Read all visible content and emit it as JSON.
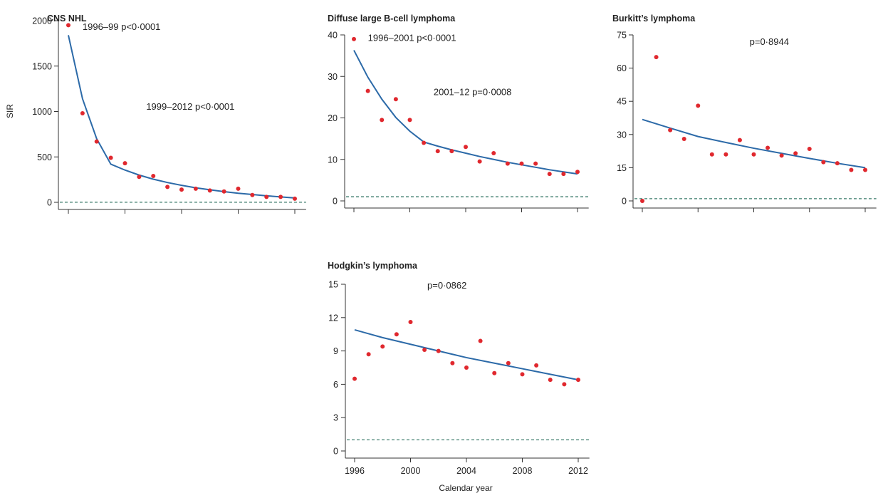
{
  "colors": {
    "points": "#e0282e",
    "fit_line": "#2c6aa8",
    "reference_line": "#3a7a6a",
    "axis": "#333333",
    "text": "#222222"
  },
  "chart_data": [
    {
      "id": "cns",
      "type": "scatter",
      "title": "CNS NHL",
      "ylabel": "SIR",
      "xlabel": "",
      "ylim": [
        0,
        2000
      ],
      "yticks": [
        0,
        500,
        1000,
        1500,
        2000
      ],
      "xlim": [
        1995.8,
        2012.8
      ],
      "xticks": [
        1996,
        2000,
        2004,
        2008,
        2012
      ],
      "show_xtick_labels": false,
      "reference_y": 1,
      "points": {
        "x": [
          1996,
          1997,
          1998,
          1999,
          2000,
          2001,
          2002,
          2003,
          2004,
          2005,
          2006,
          2007,
          2008,
          2009,
          2010,
          2011,
          2012
        ],
        "y": [
          1950,
          980,
          670,
          490,
          430,
          280,
          290,
          170,
          140,
          150,
          130,
          120,
          150,
          80,
          60,
          60,
          40
        ]
      },
      "fit": {
        "x": [
          1996,
          1997,
          1998,
          1999,
          2000,
          2001,
          2002,
          2003,
          2004,
          2005,
          2006,
          2007,
          2008,
          2009,
          2010,
          2011,
          2012
        ],
        "y": [
          1840,
          1140,
          700,
          420,
          355,
          300,
          255,
          218,
          187,
          160,
          138,
          118,
          100,
          86,
          72,
          60,
          48
        ]
      },
      "annotations": [
        {
          "text": "1996–99 p<0·0001",
          "x": 1997,
          "y": 1900
        },
        {
          "text": "1999–2012 p<0·0001",
          "x": 2001.5,
          "y": 1020
        }
      ]
    },
    {
      "id": "dlbcl",
      "type": "scatter",
      "title": "Diffuse large B-cell lymphoma",
      "ylabel": "",
      "xlabel": "",
      "ylim": [
        0,
        40
      ],
      "yticks": [
        0,
        10,
        20,
        30,
        40
      ],
      "xlim": [
        1995.8,
        2012.8
      ],
      "xticks": [
        1996,
        2000,
        2004,
        2008,
        2012
      ],
      "show_xtick_labels": false,
      "reference_y": 1,
      "points": {
        "x": [
          1996,
          1997,
          1998,
          1999,
          2000,
          2001,
          2002,
          2003,
          2004,
          2005,
          2006,
          2007,
          2008,
          2009,
          2010,
          2011,
          2012
        ],
        "y": [
          39,
          26.5,
          19.5,
          24.5,
          19.5,
          14,
          12,
          12,
          13,
          9.5,
          11.5,
          9,
          9,
          9,
          6.5,
          6.5,
          7
        ]
      },
      "fit": {
        "x": [
          1996,
          1997,
          1998,
          1999,
          2000,
          2001,
          2002,
          2003,
          2004,
          2005,
          2006,
          2007,
          2008,
          2009,
          2010,
          2011,
          2012
        ],
        "y": [
          36.3,
          29.8,
          24.5,
          20.1,
          16.8,
          14.2,
          13.2,
          12.3,
          11.5,
          10.7,
          10.0,
          9.3,
          8.7,
          8.1,
          7.5,
          7.0,
          6.5
        ]
      },
      "annotations": [
        {
          "text": "1996–2001 p<0·0001",
          "x": 1997,
          "y": 38.5
        },
        {
          "text": "2001–12 p=0·0008",
          "x": 2001.7,
          "y": 25.5
        }
      ]
    },
    {
      "id": "burkitt",
      "type": "scatter",
      "title": "Burkitt’s lymphoma",
      "ylabel": "",
      "xlabel": "",
      "ylim": [
        0,
        75
      ],
      "yticks": [
        0,
        15,
        30,
        45,
        60,
        75
      ],
      "xlim": [
        1995.8,
        2012.8
      ],
      "xticks": [
        1996,
        2000,
        2004,
        2008,
        2012
      ],
      "show_xtick_labels": false,
      "reference_y": 1,
      "points": {
        "x": [
          1996,
          1997,
          1998,
          1999,
          2000,
          2001,
          2002,
          2003,
          2004,
          2005,
          2006,
          2007,
          2008,
          2009,
          2010,
          2011,
          2012
        ],
        "y": [
          0,
          65,
          32,
          28,
          43,
          21,
          21,
          27.5,
          21,
          24,
          20.5,
          21.5,
          23.5,
          17.5,
          17,
          14,
          14
        ]
      },
      "fit": {
        "x": [
          1996,
          1998,
          2000,
          2002,
          2004,
          2006,
          2008,
          2010,
          2012
        ],
        "y": [
          36.8,
          32.9,
          29.1,
          26.4,
          23.8,
          21.5,
          19.2,
          17.0,
          15.0
        ]
      },
      "annotations": [
        {
          "text": "p=0·8944",
          "x": 2003.7,
          "y": 70.5
        }
      ]
    },
    {
      "id": "hodgkin",
      "type": "scatter",
      "title": "Hodgkin’s lymphoma",
      "ylabel": "",
      "xlabel": "Calendar year",
      "ylim": [
        0,
        15
      ],
      "yticks": [
        0,
        3,
        6,
        9,
        12,
        15
      ],
      "ytick_labels": [
        "0",
        "3",
        "6",
        "9",
        "12",
        "15"
      ],
      "xlim": [
        1995.8,
        2012.8
      ],
      "xticks": [
        1996,
        2000,
        2004,
        2008,
        2012
      ],
      "show_xtick_labels": true,
      "reference_y": 1,
      "points": {
        "x": [
          1996,
          1997,
          1998,
          1999,
          2000,
          2001,
          2002,
          2003,
          2004,
          2005,
          2006,
          2007,
          2008,
          2009,
          2010,
          2011,
          2012
        ],
        "y": [
          6.5,
          8.7,
          9.4,
          10.5,
          11.6,
          9.1,
          9.0,
          7.9,
          7.5,
          9.9,
          7.0,
          7.9,
          6.9,
          7.7,
          6.4,
          6.0,
          6.4
        ]
      },
      "fit": {
        "x": [
          1996,
          1998,
          2000,
          2002,
          2004,
          2006,
          2008,
          2010,
          2012
        ],
        "y": [
          10.9,
          10.2,
          9.6,
          9.0,
          8.4,
          7.9,
          7.4,
          6.9,
          6.4
        ]
      },
      "annotations": [
        {
          "text": "p=0·0862",
          "x": 2001.2,
          "y": 14.6
        }
      ]
    }
  ]
}
